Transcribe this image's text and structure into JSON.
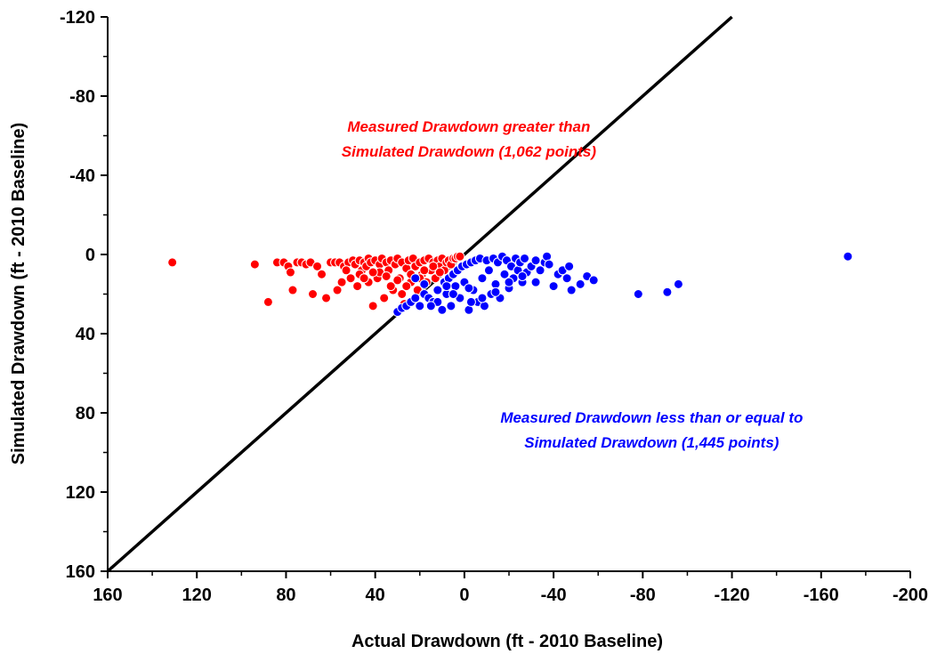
{
  "chart_data": {
    "type": "scatter",
    "title": "",
    "xlabel": "Actual Drawdown (ft - 2010 Baseline)",
    "ylabel": "Simulated Drawdown (ft - 2010 Baseline)",
    "xlim": [
      160,
      -200
    ],
    "ylim": [
      160,
      -120
    ],
    "x_reversed": true,
    "y_reversed": true,
    "xticks": [
      160,
      120,
      80,
      40,
      0,
      -40,
      -80,
      -120,
      -160,
      -200
    ],
    "yticks": [
      160,
      120,
      80,
      40,
      0,
      -40,
      -80,
      -120
    ],
    "xtick_labels": [
      "160",
      "120",
      "80",
      "40",
      "0",
      "-40",
      "-80",
      "-120",
      "-160",
      "-200"
    ],
    "ytick_labels": [
      "160",
      "120",
      "80",
      "40",
      "0",
      "-40",
      "-80",
      "-120"
    ],
    "grid": false,
    "reference_line": {
      "from": [
        160,
        160
      ],
      "to": [
        -120,
        -120
      ],
      "color": "#000000"
    },
    "series": [
      {
        "color": "#ff0000",
        "points": [
          [
            131,
            4
          ],
          [
            94,
            5
          ],
          [
            88,
            24
          ],
          [
            84,
            4
          ],
          [
            81,
            4
          ],
          [
            79,
            6
          ],
          [
            78,
            9
          ],
          [
            77,
            18
          ],
          [
            75,
            4
          ],
          [
            73,
            4
          ],
          [
            71,
            5
          ],
          [
            69,
            4
          ],
          [
            68,
            20
          ],
          [
            66,
            6
          ],
          [
            64,
            10
          ],
          [
            62,
            22
          ],
          [
            60,
            4
          ],
          [
            58,
            4
          ],
          [
            57,
            18
          ],
          [
            56,
            4
          ],
          [
            55,
            14
          ],
          [
            54,
            6
          ],
          [
            52,
            4
          ],
          [
            51,
            12
          ],
          [
            50,
            3
          ],
          [
            49,
            5
          ],
          [
            48,
            16
          ],
          [
            47,
            3
          ],
          [
            46,
            8
          ],
          [
            45,
            4
          ],
          [
            44,
            6
          ],
          [
            43,
            2
          ],
          [
            42,
            4
          ],
          [
            41,
            26
          ],
          [
            40,
            3
          ],
          [
            39,
            12
          ],
          [
            38,
            5
          ],
          [
            37,
            2
          ],
          [
            36,
            22
          ],
          [
            35,
            4
          ],
          [
            34,
            8
          ],
          [
            33,
            3
          ],
          [
            32,
            18
          ],
          [
            31,
            5
          ],
          [
            30,
            2
          ],
          [
            29,
            12
          ],
          [
            28,
            4
          ],
          [
            27,
            25
          ],
          [
            26,
            7
          ],
          [
            25,
            3
          ],
          [
            24,
            14
          ],
          [
            23,
            2
          ],
          [
            22,
            6
          ],
          [
            21,
            18
          ],
          [
            20,
            4
          ],
          [
            19,
            10
          ],
          [
            18,
            3
          ],
          [
            17,
            14
          ],
          [
            16,
            2
          ],
          [
            15,
            8
          ],
          [
            14,
            4
          ],
          [
            13,
            12
          ],
          [
            12,
            3
          ],
          [
            11,
            6
          ],
          [
            10,
            2
          ],
          [
            9,
            8
          ],
          [
            8,
            4
          ],
          [
            7,
            3
          ],
          [
            6,
            5
          ],
          [
            5,
            2
          ],
          [
            4,
            2
          ],
          [
            3,
            1
          ],
          [
            2,
            1
          ],
          [
            53,
            8
          ],
          [
            47,
            10
          ],
          [
            43,
            14
          ],
          [
            38,
            9
          ],
          [
            33,
            16
          ],
          [
            28,
            20
          ],
          [
            24,
            10
          ],
          [
            20,
            12
          ],
          [
            18,
            8
          ],
          [
            14,
            6
          ],
          [
            11,
            9
          ],
          [
            26,
            16
          ],
          [
            30,
            13
          ],
          [
            35,
            11
          ],
          [
            41,
            9
          ],
          [
            45,
            12
          ]
        ]
      },
      {
        "color": "#0000ff",
        "points": [
          [
            30,
            29
          ],
          [
            28,
            27
          ],
          [
            26,
            26
          ],
          [
            24,
            24
          ],
          [
            22,
            22
          ],
          [
            20,
            26
          ],
          [
            18,
            20
          ],
          [
            16,
            22
          ],
          [
            14,
            24
          ],
          [
            12,
            18
          ],
          [
            10,
            28
          ],
          [
            9,
            14
          ],
          [
            8,
            20
          ],
          [
            7,
            12
          ],
          [
            6,
            26
          ],
          [
            5,
            10
          ],
          [
            4,
            16
          ],
          [
            3,
            8
          ],
          [
            2,
            22
          ],
          [
            1,
            6
          ],
          [
            0,
            14
          ],
          [
            -1,
            5
          ],
          [
            -2,
            28
          ],
          [
            -3,
            4
          ],
          [
            -4,
            18
          ],
          [
            -5,
            3
          ],
          [
            -6,
            24
          ],
          [
            -7,
            2
          ],
          [
            -8,
            12
          ],
          [
            -9,
            26
          ],
          [
            -10,
            3
          ],
          [
            -11,
            8
          ],
          [
            -12,
            20
          ],
          [
            -13,
            2
          ],
          [
            -14,
            15
          ],
          [
            -15,
            4
          ],
          [
            -16,
            22
          ],
          [
            -17,
            1
          ],
          [
            -18,
            10
          ],
          [
            -19,
            3
          ],
          [
            -20,
            17
          ],
          [
            -21,
            6
          ],
          [
            -22,
            12
          ],
          [
            -23,
            2
          ],
          [
            -24,
            8
          ],
          [
            -25,
            4
          ],
          [
            -26,
            14
          ],
          [
            -27,
            2
          ],
          [
            -28,
            9
          ],
          [
            -30,
            6
          ],
          [
            -32,
            3
          ],
          [
            -34,
            8
          ],
          [
            -36,
            4
          ],
          [
            -37,
            1
          ],
          [
            -38,
            5
          ],
          [
            -40,
            16
          ],
          [
            -42,
            10
          ],
          [
            -44,
            8
          ],
          [
            -46,
            12
          ],
          [
            -47,
            6
          ],
          [
            -48,
            18
          ],
          [
            -52,
            15
          ],
          [
            -55,
            11
          ],
          [
            -58,
            13
          ],
          [
            -78,
            20
          ],
          [
            -91,
            19
          ],
          [
            -96,
            15
          ],
          [
            -172,
            1
          ],
          [
            12,
            24
          ],
          [
            15,
            26
          ],
          [
            5,
            20
          ],
          [
            -3,
            24
          ],
          [
            -8,
            22
          ],
          [
            -14,
            19
          ],
          [
            -20,
            14
          ],
          [
            -26,
            11
          ],
          [
            -32,
            14
          ],
          [
            -2,
            17
          ],
          [
            8,
            16
          ],
          [
            18,
            15
          ],
          [
            22,
            12
          ]
        ]
      }
    ],
    "annotations": [
      {
        "lines": [
          "Measured Drawdown greater than",
          "Simulated Drawdown (1,062 points)"
        ],
        "color": "#ff0000",
        "anchor_data": [
          -2,
          -62
        ]
      },
      {
        "lines": [
          "Measured Drawdown less than or equal to",
          "Simulated Drawdown (1,445 points)"
        ],
        "color": "#0000ff",
        "anchor_data": [
          -84,
          85
        ]
      }
    ]
  }
}
